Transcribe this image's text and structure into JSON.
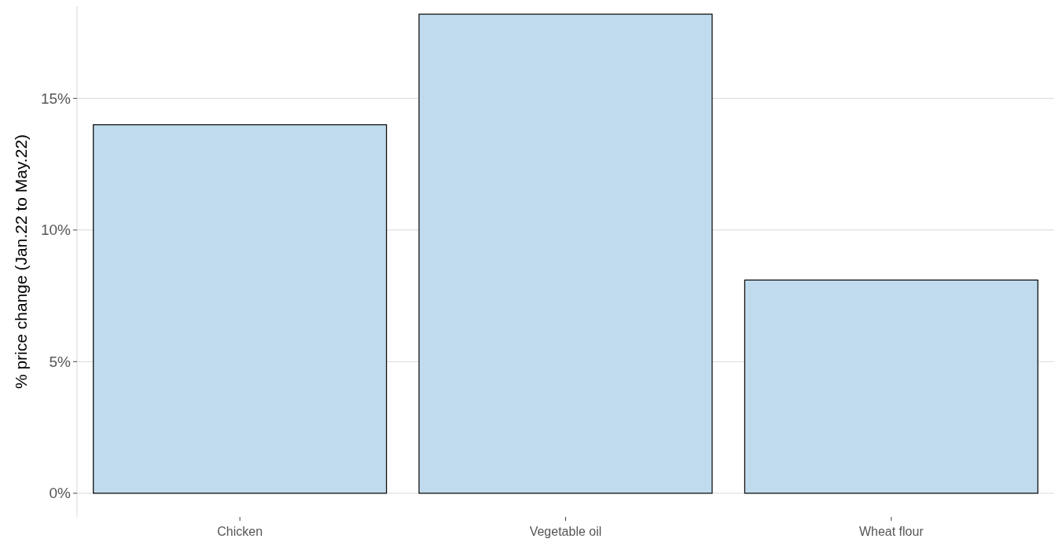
{
  "chart_data": {
    "type": "bar",
    "ylabel": "% price change (Jan.22 to May.22)",
    "categories": [
      "Chicken",
      "Vegetable oil",
      "Wheat flour"
    ],
    "values": [
      14.0,
      18.2,
      8.1
    ],
    "color": "#c0dbed",
    "ylim": [
      -0.9,
      18.5
    ],
    "yticks": [
      {
        "value": 0,
        "label": "0%"
      },
      {
        "value": 5,
        "label": "5%"
      },
      {
        "value": 10,
        "label": "10%"
      },
      {
        "value": 15,
        "label": "15%"
      }
    ],
    "grid": "y"
  }
}
